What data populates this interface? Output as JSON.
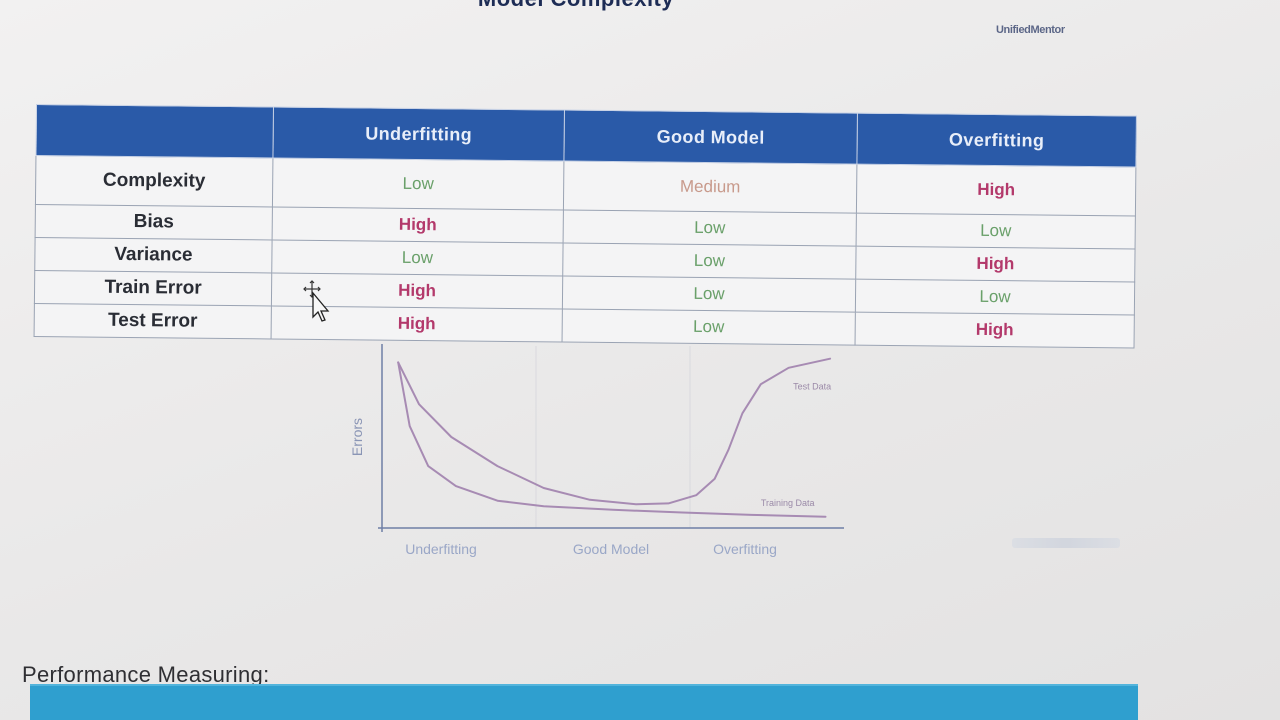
{
  "slide": {
    "title": "Model Complexity",
    "logo_text": "UnifiedMentor"
  },
  "table": {
    "columns": [
      "",
      "Underfitting",
      "Good Model",
      "Overfitting"
    ],
    "rows": [
      {
        "label": "Complexity",
        "values": [
          "Low",
          "Medium",
          "High"
        ]
      },
      {
        "label": "Bias",
        "values": [
          "High",
          "Low",
          "Low"
        ]
      },
      {
        "label": "Variance",
        "values": [
          "Low",
          "Low",
          "High"
        ]
      },
      {
        "label": "Train Error",
        "values": [
          "High",
          "Low",
          "Low"
        ]
      },
      {
        "label": "Test Error",
        "values": [
          "High",
          "Low",
          "High"
        ]
      }
    ],
    "value_colors": {
      "Low": "#6aa06a",
      "Medium": "#c89a8c",
      "High": "#b3396b"
    }
  },
  "chart_data": {
    "type": "line",
    "title": "",
    "ylabel": "Errors",
    "xlabel": "",
    "x_regions": [
      "Underfitting",
      "Good Model",
      "Overfitting"
    ],
    "xlim": [
      0,
      10
    ],
    "ylim": [
      0,
      10
    ],
    "grid": false,
    "series": [
      {
        "name": "Test Data",
        "color": "#a78bb3",
        "x": [
          0.35,
          0.8,
          1.5,
          2.5,
          3.5,
          4.5,
          5.5,
          6.2,
          6.8,
          7.2,
          7.5,
          7.8,
          8.2,
          8.8,
          9.7
        ],
        "y": [
          9.1,
          6.8,
          5.0,
          3.4,
          2.2,
          1.55,
          1.3,
          1.35,
          1.8,
          2.7,
          4.3,
          6.3,
          7.9,
          8.8,
          9.3
        ]
      },
      {
        "name": "Training Data",
        "color": "#a78bb3",
        "x": [
          0.35,
          0.6,
          1.0,
          1.6,
          2.5,
          3.5,
          5.0,
          6.5,
          8.0,
          9.6
        ],
        "y": [
          9.1,
          5.6,
          3.4,
          2.3,
          1.5,
          1.2,
          1.0,
          0.85,
          0.72,
          0.62
        ]
      }
    ],
    "annotations": [
      {
        "text": "Test Data",
        "series": "Test Data"
      },
      {
        "text": "Training Data",
        "series": "Training Data"
      }
    ]
  },
  "section": {
    "heading": "Performance Measuring:"
  },
  "colors": {
    "header_bg": "#2a5aa8",
    "accent_bar": "#2f9fcf"
  }
}
